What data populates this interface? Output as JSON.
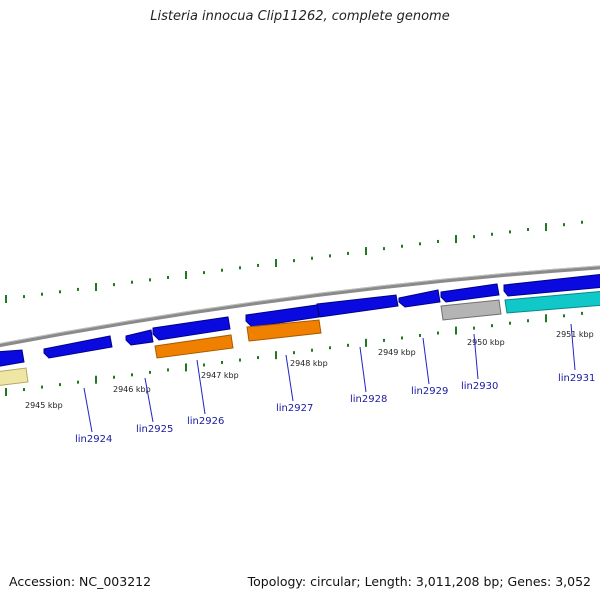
{
  "title": "Listeria innocua Clip11262, complete genome",
  "footer": {
    "accession": "Accession: NC_003212",
    "stats": "Topology: circular; Length: 3,011,208 bp; Genes: 3,052"
  },
  "colors": {
    "backbone": "#8a8a8a",
    "tick": "#1f7a1f",
    "gene_blue": "#0a0ae0",
    "gene_orange": "#f08000",
    "gene_grey": "#b4b4b4",
    "gene_cyan": "#10c8c8",
    "gene_yellow": "#efe6a6",
    "label": "#1a1aa0",
    "leader": "#2222c8"
  },
  "position_labels": [
    "2945 kbp",
    "2946 kbp",
    "2947 kbp",
    "2948 kbp",
    "2949 kbp",
    "2950 kbp",
    "2951 kbp"
  ],
  "gene_labels": [
    "lin2924",
    "lin2925",
    "lin2926",
    "lin2927",
    "lin2928",
    "lin2929",
    "lin2930",
    "lin2931"
  ]
}
